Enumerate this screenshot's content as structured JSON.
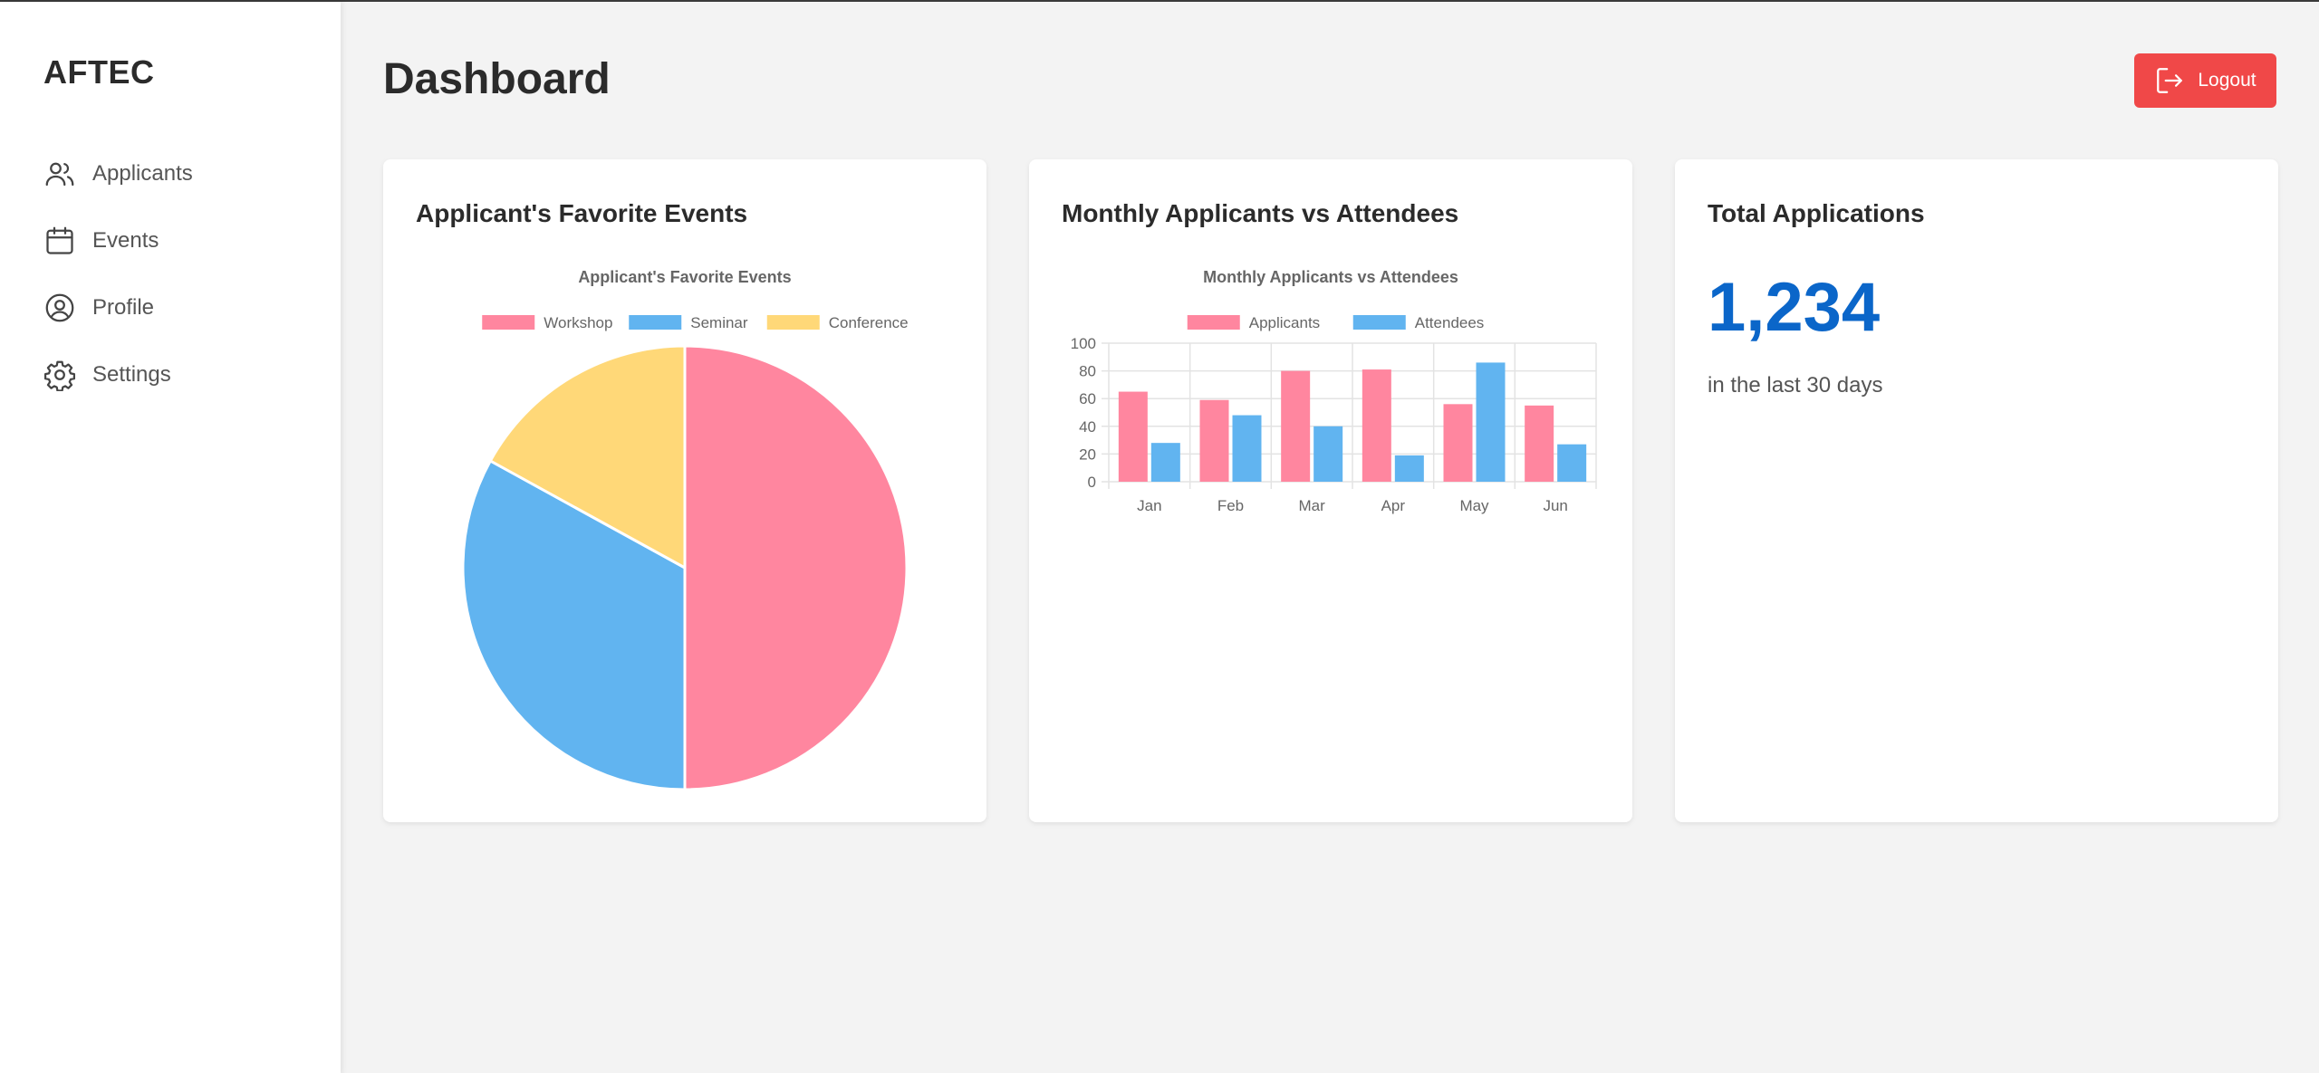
{
  "sidebar": {
    "brand": "AFTEC",
    "items": [
      {
        "label": "Applicants",
        "icon": "users-icon"
      },
      {
        "label": "Events",
        "icon": "calendar-icon"
      },
      {
        "label": "Profile",
        "icon": "user-circle-icon"
      },
      {
        "label": "Settings",
        "icon": "gear-icon"
      }
    ]
  },
  "header": {
    "title": "Dashboard",
    "logout_label": "Logout",
    "logout_icon": "logout-icon",
    "logout_color": "#f04848"
  },
  "cards": {
    "favorite_events": {
      "title": "Applicant's Favorite Events"
    },
    "monthly": {
      "title": "Monthly Applicants vs Attendees"
    },
    "total": {
      "title": "Total Applications",
      "value": "1,234",
      "caption": "in the last 30 days",
      "value_color": "#0b66c9"
    }
  },
  "chart_data": [
    {
      "type": "pie",
      "title": "Applicant's Favorite Events",
      "legend_position": "top",
      "categories": [
        "Workshop",
        "Seminar",
        "Conference"
      ],
      "values": [
        50,
        33,
        17
      ],
      "colors": [
        "#ff869f",
        "#61b4f0",
        "#ffd878"
      ]
    },
    {
      "type": "bar",
      "title": "Monthly Applicants vs Attendees",
      "legend_position": "top",
      "categories": [
        "Jan",
        "Feb",
        "Mar",
        "Apr",
        "May",
        "Jun"
      ],
      "series": [
        {
          "name": "Applicants",
          "values": [
            65,
            59,
            80,
            81,
            56,
            55
          ],
          "color": "#ff869f"
        },
        {
          "name": "Attendees",
          "values": [
            28,
            48,
            40,
            19,
            86,
            27
          ],
          "color": "#61b4f0"
        }
      ],
      "ylim": [
        0,
        100
      ],
      "yticks": [
        0,
        20,
        40,
        60,
        80,
        100
      ],
      "grid": true
    }
  ]
}
